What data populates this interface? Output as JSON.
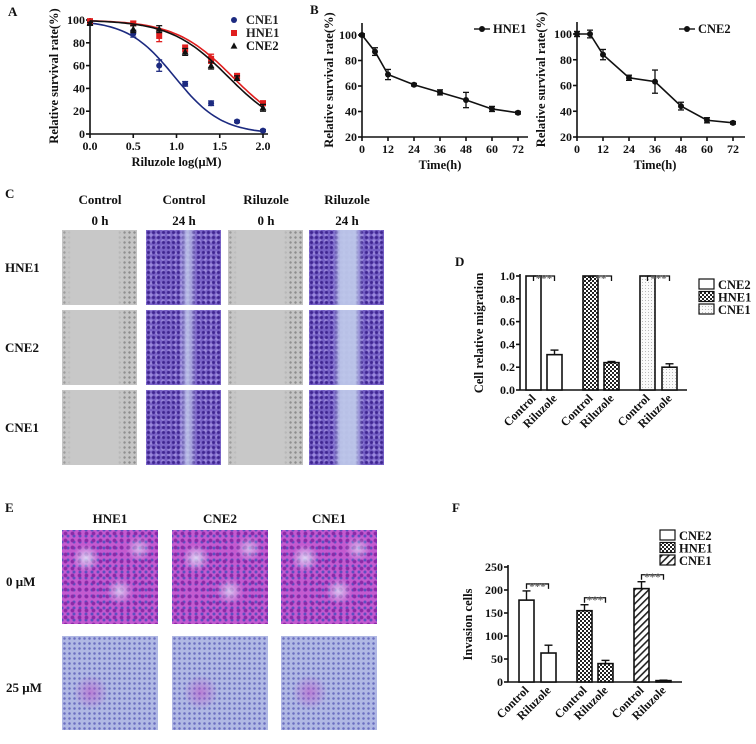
{
  "panel_labels": {
    "A": "A",
    "B": "B",
    "C": "C",
    "D": "D",
    "E": "E",
    "F": "F"
  },
  "chart_data": [
    {
      "id": "A",
      "type": "line",
      "xlabel": "Riluzole log(μM)",
      "ylabel": "Relative survival rate(%)",
      "xlim": [
        0,
        2
      ],
      "ylim": [
        0,
        100
      ],
      "xticks": [
        "0.0",
        "0.5",
        "1.0",
        "1.5",
        "2.0"
      ],
      "yticks": [
        "0",
        "20",
        "40",
        "60",
        "80",
        "100"
      ],
      "legend": "top-right",
      "grid": false,
      "x": [
        0,
        0.5,
        0.8,
        1.1,
        1.4,
        1.7,
        2.0
      ],
      "series": [
        {
          "name": "CNE1",
          "color": "#1c2a80",
          "marker": "circle",
          "values": [
            97,
            88,
            60,
            44,
            27,
            11,
            3
          ],
          "error": [
            1,
            3,
            5,
            2,
            2,
            1,
            1
          ]
        },
        {
          "name": "HNE1",
          "color": "#e01e1e",
          "marker": "square",
          "values": [
            99,
            97,
            86,
            75,
            66,
            51,
            27
          ],
          "error": [
            1,
            2,
            5,
            3,
            4,
            2,
            2
          ]
        },
        {
          "name": "CNE2",
          "color": "#111111",
          "marker": "triangle",
          "values": [
            97,
            92,
            92,
            72,
            60,
            49,
            23
          ],
          "error": [
            1,
            3,
            3,
            3,
            3,
            2,
            3
          ]
        }
      ]
    },
    {
      "id": "B-HNE1",
      "type": "line",
      "xlabel": "Time(h)",
      "ylabel": "Relative survival rate(%)",
      "xlim": [
        0,
        72
      ],
      "ylim": [
        20,
        100
      ],
      "xticks": [
        "0",
        "12",
        "24",
        "36",
        "48",
        "60",
        "72"
      ],
      "yticks": [
        "20",
        "40",
        "60",
        "80",
        "100"
      ],
      "legend": "top-right",
      "x": [
        0,
        6,
        12,
        24,
        36,
        48,
        60,
        72
      ],
      "series": [
        {
          "name": "HNE1",
          "color": "#111111",
          "marker": "circle",
          "values": [
            100,
            87,
            69,
            61,
            55,
            49,
            42,
            39
          ],
          "error": [
            1,
            3,
            4,
            1,
            2,
            6,
            2,
            1
          ]
        }
      ]
    },
    {
      "id": "B-CNE2",
      "type": "line",
      "xlabel": "Time(h)",
      "ylabel": "Relative survival rate(%)",
      "xlim": [
        0,
        72
      ],
      "ylim": [
        20,
        100
      ],
      "xticks": [
        "0",
        "12",
        "24",
        "36",
        "48",
        "60",
        "72"
      ],
      "yticks": [
        "20",
        "40",
        "60",
        "80",
        "100"
      ],
      "legend": "top-right",
      "x": [
        0,
        6,
        12,
        24,
        36,
        48,
        60,
        72
      ],
      "series": [
        {
          "name": "CNE2",
          "color": "#111111",
          "marker": "circle",
          "values": [
            100,
            100,
            84,
            66,
            63,
            44,
            33,
            31
          ],
          "error": [
            2,
            3,
            4,
            2,
            9,
            3,
            2,
            1
          ]
        }
      ]
    },
    {
      "id": "D",
      "type": "bar",
      "ylabel": "Cell relative migration",
      "ylim": [
        0,
        1.0
      ],
      "yticks": [
        "0.0",
        "0.2",
        "0.4",
        "0.6",
        "0.8",
        "1.0"
      ],
      "categories": [
        "Control",
        "Riluzole",
        "Control",
        "Riluzole",
        "Control",
        "Riluzole"
      ],
      "legend": "right",
      "groups": [
        {
          "name": "CNE2",
          "pattern": "open",
          "values": [
            1.0,
            0.31
          ],
          "error": [
            0,
            0.04
          ],
          "significance": "***"
        },
        {
          "name": "HNE1",
          "pattern": "checker",
          "values": [
            1.0,
            0.24
          ],
          "error": [
            0,
            0.01
          ],
          "significance": "**"
        },
        {
          "name": "CNE1",
          "pattern": "dots",
          "values": [
            1.0,
            0.2
          ],
          "error": [
            0,
            0.03
          ],
          "significance": "***"
        }
      ]
    },
    {
      "id": "F",
      "type": "bar",
      "ylabel": "Invasion cells",
      "ylim": [
        0,
        250
      ],
      "yticks": [
        "0",
        "50",
        "100",
        "150",
        "200",
        "250"
      ],
      "categories": [
        "Control",
        "Riluzole",
        "Control",
        "Riluzole",
        "Control",
        "Riluzole"
      ],
      "legend": "top-right",
      "groups": [
        {
          "name": "CNE2",
          "pattern": "open",
          "values": [
            178,
            63
          ],
          "error": [
            20,
            17
          ],
          "significance": "***"
        },
        {
          "name": "HNE1",
          "pattern": "checker",
          "values": [
            155,
            40
          ],
          "error": [
            13,
            7
          ],
          "significance": "***"
        },
        {
          "name": "CNE1",
          "pattern": "hatch",
          "values": [
            203,
            3
          ],
          "error": [
            15,
            1
          ],
          "significance": "***"
        }
      ]
    }
  ],
  "panel_c": {
    "columns": [
      {
        "line1": "Control",
        "line2": "0 h"
      },
      {
        "line1": "Control",
        "line2": "24 h"
      },
      {
        "line1": "Riluzole",
        "line2": "0 h"
      },
      {
        "line1": "Riluzole",
        "line2": "24 h"
      }
    ],
    "rows": [
      "HNE1",
      "CNE2",
      "CNE1"
    ]
  },
  "panel_e": {
    "columns": [
      "HNE1",
      "CNE2",
      "CNE1"
    ],
    "rows": [
      "0 μM",
      "25 μM"
    ]
  }
}
